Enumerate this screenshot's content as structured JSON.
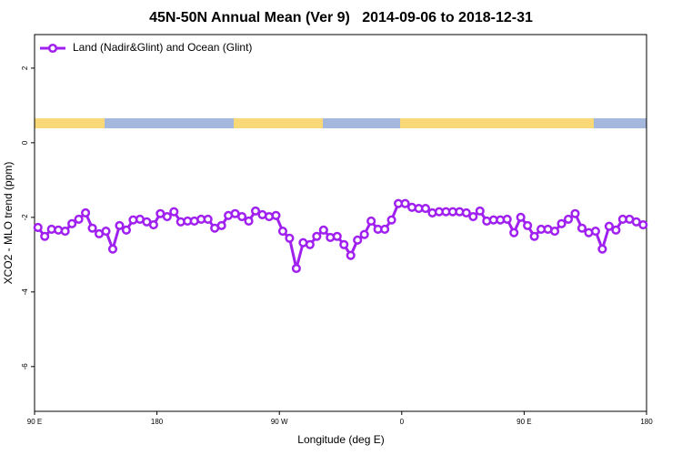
{
  "chart_data": {
    "type": "line",
    "title": "45N-50N Annual Mean (Ver 9)   2014-09-06 to 2018-12-31",
    "x_label": "Longitude (deg E)",
    "y_label": "XCO2 - MLO trend (ppm)",
    "x": [
      92.5,
      97.5,
      102.5,
      107.5,
      112.5,
      117.5,
      122.5,
      127.5,
      132.5,
      137.5,
      142.5,
      147.5,
      152.5,
      157.5,
      162.5,
      167.5,
      172.5,
      177.5,
      182.5,
      187.5,
      192.5,
      197.5,
      202.5,
      207.5,
      212.5,
      217.5,
      222.5,
      227.5,
      232.5,
      237.5,
      242.5,
      247.5,
      252.5,
      257.5,
      262.5,
      267.5,
      272.5,
      277.5,
      282.5,
      287.5,
      292.5,
      297.5,
      302.5,
      307.5,
      312.5,
      317.5,
      322.5,
      327.5,
      332.5,
      337.5,
      342.5,
      347.5,
      352.5,
      357.5,
      362.5,
      367.5,
      372.5,
      377.5,
      382.5,
      387.5,
      392.5,
      397.5,
      402.5,
      407.5,
      412.5,
      417.5,
      422.5,
      427.5,
      432.5,
      437.5,
      442.5,
      447.5,
      452.5,
      457.5,
      462.5,
      467.5,
      472.5,
      477.5,
      482.5,
      487.5,
      492.5,
      497.5,
      502.5,
      507.5,
      512.5,
      517.5,
      522.5,
      527.5,
      532.5,
      537.5
    ],
    "series": [
      {
        "name": "Land (Nadir&Glint) and Ocean (Glint)",
        "color": "#a020f0",
        "values": [
          -2.27,
          -2.51,
          -2.32,
          -2.34,
          -2.37,
          -2.17,
          -2.05,
          -1.88,
          -2.29,
          -2.44,
          -2.37,
          -2.85,
          -2.22,
          -2.34,
          -2.07,
          -2.05,
          -2.12,
          -2.2,
          -1.9,
          -1.98,
          -1.85,
          -2.12,
          -2.1,
          -2.1,
          -2.05,
          -2.05,
          -2.29,
          -2.22,
          -1.95,
          -1.9,
          -1.98,
          -2.1,
          -1.83,
          -1.93,
          -1.98,
          -1.95,
          -2.37,
          -2.56,
          -3.37,
          -2.68,
          -2.73,
          -2.51,
          -2.34,
          -2.54,
          -2.51,
          -2.73,
          -3.02,
          -2.61,
          -2.46,
          -2.1,
          -2.32,
          -2.32,
          -2.07,
          -1.63,
          -1.63,
          -1.73,
          -1.76,
          -1.76,
          -1.88,
          -1.85,
          -1.85,
          -1.85,
          -1.85,
          -1.88,
          -1.98,
          -1.83,
          -2.1,
          -2.07,
          -2.07,
          -2.05,
          -2.41,
          -2,
          -2.22,
          -2.51,
          -2.32,
          -2.32,
          -2.37,
          -2.17,
          -2.05,
          -1.9,
          -2.29,
          -2.41,
          -2.37,
          -2.85,
          -2.24,
          -2.34,
          -2.05,
          -2.05,
          -2.12,
          -2.2
        ]
      }
    ],
    "xlim": [
      90,
      540
    ],
    "xticks": [
      {
        "value": 90,
        "label": "90 E"
      },
      {
        "value": 180,
        "label": "180"
      },
      {
        "value": 270,
        "label": "90 W"
      },
      {
        "value": 360,
        "label": "0"
      },
      {
        "value": 450,
        "label": "90 E"
      },
      {
        "value": 540,
        "label": "180"
      }
    ],
    "ylim": [
      -7.2,
      2.9
    ],
    "yticks": [
      2,
      0,
      -2,
      -4,
      -6
    ],
    "legend": "upper left"
  }
}
